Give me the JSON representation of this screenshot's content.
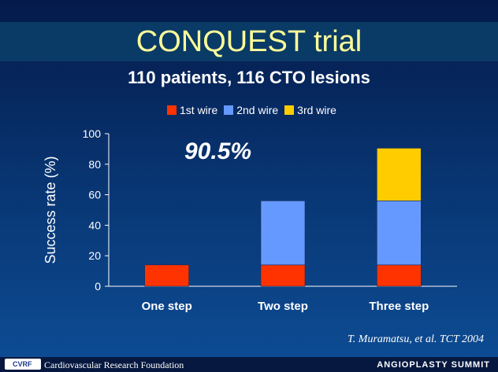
{
  "slide": {
    "title": "CONQUEST trial",
    "subtitle": "110 patients, 116 CTO lesions",
    "highlight": "90.5%",
    "citation": "T. Muramatsu, et al. TCT 2004"
  },
  "footer": {
    "logo_text": "CVRF",
    "organization": "Cardiovascular Research Foundation",
    "event": "ANGIOPLASTY SUMMIT"
  },
  "colors": {
    "title_text": "#ffff99",
    "first_wire": "#ff3300",
    "second_wire": "#6699ff",
    "third_wire": "#ffcc00"
  },
  "chart_data": {
    "type": "bar",
    "stacked": true,
    "categories": [
      "One step",
      "Two step",
      "Three step"
    ],
    "series": [
      {
        "name": "1st wire",
        "values": [
          14,
          14,
          14
        ],
        "color": "#ff3300"
      },
      {
        "name": "2nd wire",
        "values": [
          0,
          42,
          42
        ],
        "color": "#6699ff"
      },
      {
        "name": "3rd wire",
        "values": [
          0,
          0,
          34.5
        ],
        "color": "#ffcc00"
      }
    ],
    "ylabel": "Success rate (%)",
    "xlabel": "",
    "ylim": [
      0,
      100
    ],
    "yticks": [
      0,
      20,
      40,
      60,
      80,
      100
    ],
    "grid": false,
    "legend_position": "top"
  }
}
